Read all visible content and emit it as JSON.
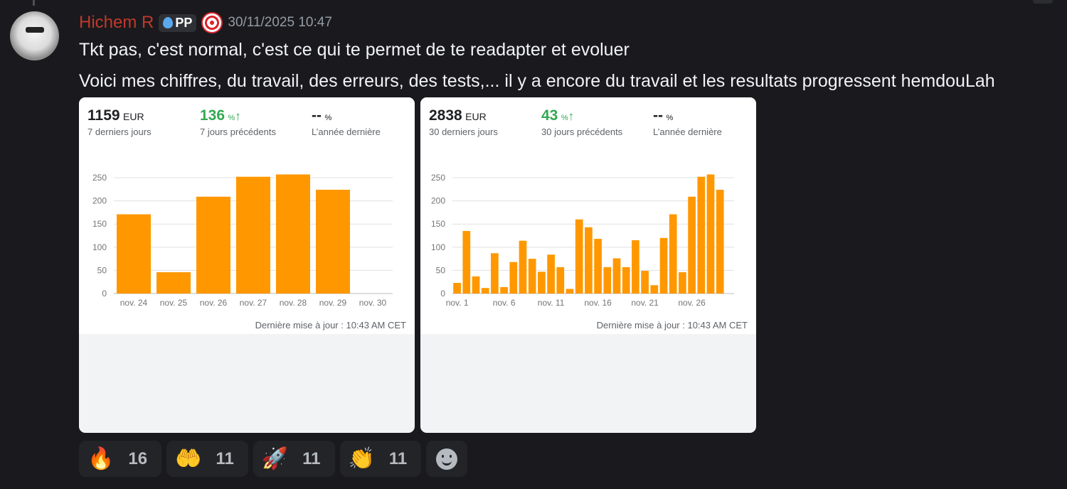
{
  "message": {
    "username": "Hichem R",
    "tag_label": "PP",
    "timestamp": "30/11/2025 10:47",
    "lines": [
      "Tkt pas, c'est normal,  c'est ce qui te permet de te readapter et evoluer",
      "Voici mes chiffres, du travail, des erreurs, des tests,... il y a encore du travail et les resultats progressent hemdouLah"
    ]
  },
  "cards": [
    {
      "stats": [
        {
          "value": "1159",
          "unit": "EUR",
          "label": "7 derniers jours"
        },
        {
          "value": "136",
          "unit": "%",
          "label": "7 jours précédents",
          "trend": "↑"
        },
        {
          "value": "--",
          "unit": "%",
          "label": "L’année dernière"
        }
      ],
      "footer": "Dernière mise à jour : 10:43 AM CET"
    },
    {
      "stats": [
        {
          "value": "2838",
          "unit": "EUR",
          "label": "30 derniers jours"
        },
        {
          "value": "43",
          "unit": "%",
          "label": "30 jours précédents",
          "trend": "↑"
        },
        {
          "value": "--",
          "unit": "%",
          "label": "L’année dernière"
        }
      ],
      "footer": "Dernière mise à jour : 10:43 AM CET"
    }
  ],
  "chart_data": [
    {
      "type": "bar",
      "categories": [
        "nov. 24",
        "nov. 25",
        "nov. 26",
        "nov. 27",
        "nov. 28",
        "nov. 29",
        "nov. 30"
      ],
      "values": [
        171,
        46,
        209,
        252,
        257,
        224,
        0
      ],
      "tick_labels": [
        "nov. 24",
        "nov. 25",
        "nov. 26",
        "nov. 27",
        "nov. 28",
        "nov. 29",
        "nov. 30"
      ],
      "yticks": [
        0,
        50,
        100,
        150,
        200,
        250
      ],
      "ylim": [
        0,
        250
      ],
      "grid": true,
      "color": "#ff9800"
    },
    {
      "type": "bar",
      "categories": [
        "nov. 1",
        "nov. 2",
        "nov. 3",
        "nov. 4",
        "nov. 5",
        "nov. 6",
        "nov. 7",
        "nov. 8",
        "nov. 9",
        "nov. 10",
        "nov. 11",
        "nov. 12",
        "nov. 13",
        "nov. 14",
        "nov. 15",
        "nov. 16",
        "nov. 17",
        "nov. 18",
        "nov. 19",
        "nov. 20",
        "nov. 21",
        "nov. 22",
        "nov. 23",
        "nov. 24",
        "nov. 25",
        "nov. 26",
        "nov. 27",
        "nov. 28",
        "nov. 29",
        "nov. 30"
      ],
      "values": [
        23,
        135,
        37,
        12,
        87,
        14,
        68,
        114,
        75,
        47,
        84,
        57,
        10,
        160,
        143,
        118,
        57,
        76,
        57,
        115,
        49,
        18,
        120,
        171,
        46,
        209,
        252,
        257,
        224,
        0
      ],
      "tick_labels": [
        "nov. 1",
        "",
        "",
        "",
        "",
        "nov. 6",
        "",
        "",
        "",
        "",
        "nov. 11",
        "",
        "",
        "",
        "",
        "nov. 16",
        "",
        "",
        "",
        "",
        "nov. 21",
        "",
        "",
        "",
        "",
        "nov. 26",
        "",
        "",
        "",
        ""
      ],
      "yticks": [
        0,
        50,
        100,
        150,
        200,
        250
      ],
      "ylim": [
        0,
        250
      ],
      "grid": true,
      "color": "#ff9800"
    }
  ],
  "reactions": [
    {
      "emoji": "🔥",
      "count": "16"
    },
    {
      "emoji": "🤲",
      "count": "11"
    },
    {
      "emoji": "🚀",
      "count": "11"
    },
    {
      "emoji": "👏",
      "count": "11"
    }
  ]
}
